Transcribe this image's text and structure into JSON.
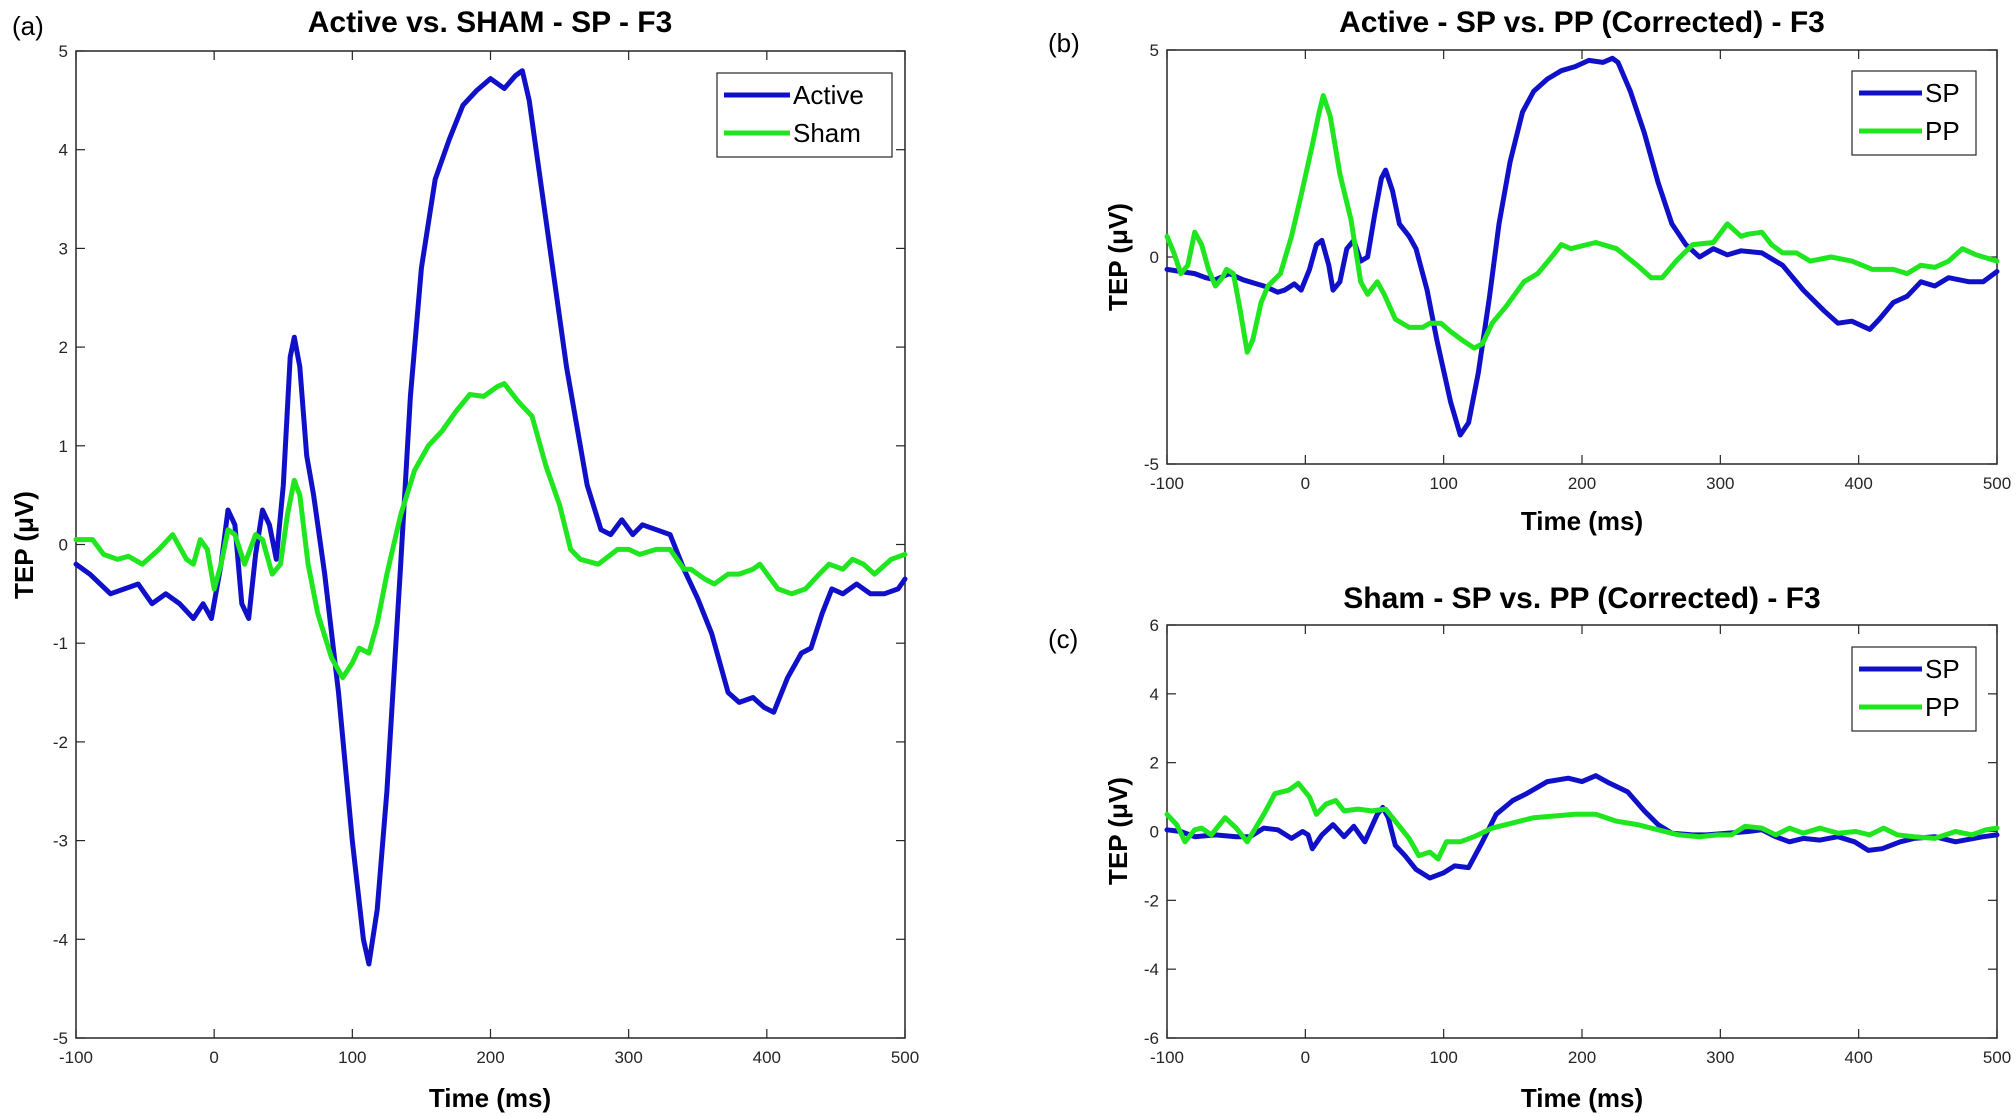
{
  "colors": {
    "series_blue": "#1010c8",
    "series_green": "#1fe61f",
    "axis": "#262626"
  },
  "chart_data": [
    {
      "panel_label": "(a)",
      "type": "line",
      "title": "Active vs. SHAM - SP - F3",
      "xlabel": "Time (ms)",
      "ylabel": "TEP (μV)",
      "xlim": [
        -100,
        500
      ],
      "ylim": [
        -5,
        5
      ],
      "xticks": [
        -100,
        0,
        100,
        200,
        300,
        400,
        500
      ],
      "yticks": [
        -5,
        -4,
        -3,
        -2,
        -1,
        0,
        1,
        2,
        3,
        4,
        5
      ],
      "grid": false,
      "legend_position": "top-right",
      "series": [
        {
          "name": "Active",
          "color": "#1010c8",
          "x": [
            -100,
            -90,
            -75,
            -65,
            -55,
            -45,
            -35,
            -25,
            -15,
            -8,
            -2,
            5,
            10,
            15,
            20,
            25,
            30,
            35,
            40,
            45,
            50,
            55,
            58,
            62,
            67,
            72,
            80,
            90,
            100,
            108,
            112,
            118,
            125,
            135,
            142,
            150,
            160,
            170,
            180,
            190,
            200,
            210,
            218,
            223,
            228,
            240,
            255,
            270,
            280,
            287,
            295,
            303,
            310,
            320,
            330,
            340,
            350,
            360,
            372,
            380,
            390,
            398,
            405,
            415,
            425,
            432,
            440,
            447,
            455,
            465,
            475,
            485,
            495,
            500
          ],
          "y": [
            -0.2,
            -0.3,
            -0.5,
            -0.45,
            -0.4,
            -0.6,
            -0.5,
            -0.6,
            -0.75,
            -0.6,
            -0.75,
            -0.2,
            0.35,
            0.2,
            -0.6,
            -0.75,
            -0.1,
            0.35,
            0.2,
            -0.15,
            0.6,
            1.9,
            2.1,
            1.8,
            0.9,
            0.5,
            -0.3,
            -1.5,
            -3.0,
            -4.0,
            -4.25,
            -3.7,
            -2.5,
            -0.2,
            1.5,
            2.8,
            3.7,
            4.1,
            4.45,
            4.6,
            4.72,
            4.62,
            4.75,
            4.8,
            4.5,
            3.3,
            1.8,
            0.6,
            0.15,
            0.1,
            0.25,
            0.1,
            0.2,
            0.15,
            0.1,
            -0.25,
            -0.55,
            -0.9,
            -1.5,
            -1.6,
            -1.55,
            -1.65,
            -1.7,
            -1.35,
            -1.1,
            -1.05,
            -0.7,
            -0.45,
            -0.5,
            -0.4,
            -0.5,
            -0.5,
            -0.45,
            -0.35
          ]
        },
        {
          "name": "Sham",
          "color": "#1fe61f",
          "x": [
            -100,
            -88,
            -80,
            -70,
            -62,
            -52,
            -40,
            -30,
            -20,
            -15,
            -10,
            -5,
            0,
            5,
            10,
            15,
            22,
            30,
            35,
            42,
            48,
            53,
            58,
            62,
            68,
            75,
            85,
            93,
            100,
            105,
            112,
            118,
            125,
            135,
            145,
            155,
            165,
            175,
            185,
            195,
            205,
            210,
            220,
            230,
            240,
            250,
            258,
            265,
            278,
            292,
            300,
            308,
            320,
            330,
            340,
            345,
            355,
            362,
            372,
            380,
            390,
            395,
            408,
            418,
            428,
            438,
            445,
            455,
            462,
            470,
            478,
            490,
            500
          ],
          "y": [
            0.05,
            0.05,
            -0.1,
            -0.15,
            -0.12,
            -0.2,
            -0.05,
            0.1,
            -0.15,
            -0.2,
            0.05,
            -0.05,
            -0.45,
            -0.2,
            0.15,
            0.1,
            -0.2,
            0.1,
            0.05,
            -0.3,
            -0.2,
            0.3,
            0.65,
            0.5,
            -0.2,
            -0.7,
            -1.15,
            -1.35,
            -1.2,
            -1.05,
            -1.1,
            -0.8,
            -0.3,
            0.3,
            0.75,
            1.0,
            1.15,
            1.35,
            1.52,
            1.5,
            1.6,
            1.63,
            1.45,
            1.3,
            0.8,
            0.4,
            -0.05,
            -0.15,
            -0.2,
            -0.05,
            -0.05,
            -0.1,
            -0.05,
            -0.05,
            -0.25,
            -0.25,
            -0.35,
            -0.4,
            -0.3,
            -0.3,
            -0.25,
            -0.2,
            -0.45,
            -0.5,
            -0.45,
            -0.3,
            -0.2,
            -0.25,
            -0.15,
            -0.2,
            -0.3,
            -0.15,
            -0.1
          ]
        }
      ]
    },
    {
      "panel_label": "(b)",
      "type": "line",
      "title": "Active - SP vs. PP (Corrected) - F3",
      "xlabel": "Time (ms)",
      "ylabel": "TEP (μV)",
      "xlim": [
        -100,
        500
      ],
      "ylim": [
        -5,
        5
      ],
      "xticks": [
        -100,
        0,
        100,
        200,
        300,
        400,
        500
      ],
      "yticks": [
        -5,
        0,
        5
      ],
      "grid": false,
      "legend_position": "top-right",
      "series": [
        {
          "name": "SP",
          "color": "#1010c8",
          "x": [
            -100,
            -90,
            -80,
            -72,
            -65,
            -55,
            -45,
            -30,
            -20,
            -15,
            -8,
            -3,
            3,
            8,
            12,
            17,
            20,
            25,
            30,
            35,
            40,
            45,
            50,
            55,
            58,
            63,
            68,
            75,
            80,
            88,
            95,
            105,
            112,
            118,
            125,
            133,
            140,
            148,
            157,
            165,
            175,
            185,
            195,
            205,
            215,
            222,
            226,
            235,
            245,
            255,
            265,
            275,
            285,
            295,
            305,
            315,
            330,
            345,
            360,
            375,
            385,
            395,
            408,
            415,
            425,
            435,
            445,
            455,
            465,
            480,
            490,
            500
          ],
          "y": [
            -0.3,
            -0.35,
            -0.4,
            -0.5,
            -0.55,
            -0.4,
            -0.55,
            -0.7,
            -0.85,
            -0.8,
            -0.65,
            -0.8,
            -0.3,
            0.3,
            0.4,
            -0.2,
            -0.8,
            -0.6,
            0.2,
            0.4,
            -0.1,
            0.0,
            1.0,
            1.9,
            2.1,
            1.6,
            0.8,
            0.5,
            0.2,
            -0.8,
            -2.0,
            -3.5,
            -4.3,
            -4.0,
            -2.8,
            -1.0,
            0.8,
            2.3,
            3.5,
            4.0,
            4.3,
            4.5,
            4.6,
            4.75,
            4.7,
            4.8,
            4.7,
            4.0,
            3.0,
            1.8,
            0.8,
            0.3,
            0.0,
            0.2,
            0.05,
            0.15,
            0.1,
            -0.2,
            -0.8,
            -1.3,
            -1.6,
            -1.55,
            -1.75,
            -1.5,
            -1.1,
            -0.95,
            -0.6,
            -0.7,
            -0.5,
            -0.6,
            -0.6,
            -0.35
          ]
        },
        {
          "name": "PP",
          "color": "#1fe61f",
          "x": [
            -100,
            -95,
            -90,
            -85,
            -80,
            -75,
            -70,
            -65,
            -60,
            -57,
            -52,
            -47,
            -42,
            -38,
            -32,
            -27,
            -18,
            -10,
            -3,
            5,
            10,
            13,
            18,
            25,
            33,
            40,
            45,
            52,
            57,
            65,
            75,
            85,
            90,
            98,
            105,
            113,
            122,
            128,
            135,
            145,
            158,
            168,
            178,
            185,
            192,
            198,
            210,
            225,
            240,
            250,
            258,
            268,
            280,
            295,
            305,
            315,
            320,
            330,
            337,
            345,
            355,
            365,
            380,
            395,
            410,
            425,
            435,
            445,
            455,
            465,
            475,
            485,
            500
          ],
          "y": [
            0.5,
            0.1,
            -0.4,
            -0.2,
            0.6,
            0.3,
            -0.3,
            -0.7,
            -0.5,
            -0.3,
            -0.4,
            -1.3,
            -2.3,
            -2.0,
            -1.1,
            -0.7,
            -0.4,
            0.5,
            1.5,
            2.7,
            3.5,
            3.9,
            3.4,
            2.0,
            0.9,
            -0.6,
            -0.9,
            -0.6,
            -0.9,
            -1.5,
            -1.7,
            -1.7,
            -1.6,
            -1.6,
            -1.8,
            -2.0,
            -2.2,
            -2.1,
            -1.6,
            -1.2,
            -0.6,
            -0.4,
            0.0,
            0.3,
            0.2,
            0.25,
            0.35,
            0.2,
            -0.2,
            -0.5,
            -0.5,
            -0.1,
            0.3,
            0.35,
            0.8,
            0.5,
            0.55,
            0.6,
            0.3,
            0.1,
            0.1,
            -0.1,
            0.0,
            -0.1,
            -0.3,
            -0.3,
            -0.4,
            -0.2,
            -0.25,
            -0.1,
            0.2,
            0.05,
            -0.1
          ]
        }
      ]
    },
    {
      "panel_label": "(c)",
      "type": "line",
      "title": "Sham - SP vs. PP (Corrected) - F3",
      "xlabel": "Time (ms)",
      "ylabel": "TEP (μV)",
      "xlim": [
        -100,
        500
      ],
      "ylim": [
        -6,
        6
      ],
      "xticks": [
        -100,
        0,
        100,
        200,
        300,
        400,
        500
      ],
      "yticks": [
        -6,
        -4,
        -2,
        0,
        2,
        4,
        6
      ],
      "grid": false,
      "legend_position": "top-right",
      "series": [
        {
          "name": "SP",
          "color": "#1010c8",
          "x": [
            -100,
            -90,
            -80,
            -65,
            -50,
            -40,
            -30,
            -20,
            -10,
            -2,
            2,
            5,
            12,
            20,
            28,
            35,
            43,
            52,
            56,
            60,
            65,
            72,
            80,
            90,
            100,
            108,
            118,
            128,
            138,
            150,
            160,
            175,
            190,
            200,
            210,
            220,
            233,
            245,
            255,
            265,
            280,
            290,
            305,
            320,
            330,
            340,
            350,
            360,
            372,
            385,
            397,
            407,
            417,
            430,
            440,
            455,
            470,
            490,
            500
          ],
          "y": [
            0.05,
            0.0,
            -0.15,
            -0.1,
            -0.15,
            -0.15,
            0.1,
            0.05,
            -0.2,
            0.0,
            -0.1,
            -0.5,
            -0.1,
            0.2,
            -0.15,
            0.15,
            -0.3,
            0.5,
            0.7,
            0.4,
            -0.4,
            -0.7,
            -1.1,
            -1.35,
            -1.2,
            -1.0,
            -1.05,
            -0.3,
            0.5,
            0.9,
            1.1,
            1.45,
            1.55,
            1.45,
            1.62,
            1.4,
            1.15,
            0.6,
            0.2,
            -0.05,
            -0.1,
            -0.1,
            -0.05,
            0.0,
            0.05,
            -0.15,
            -0.3,
            -0.2,
            -0.25,
            -0.15,
            -0.3,
            -0.55,
            -0.5,
            -0.3,
            -0.2,
            -0.15,
            -0.3,
            -0.15,
            -0.1
          ]
        },
        {
          "name": "PP",
          "color": "#1fe61f",
          "x": [
            -100,
            -93,
            -87,
            -80,
            -75,
            -68,
            -58,
            -50,
            -42,
            -30,
            -22,
            -12,
            -5,
            3,
            8,
            15,
            22,
            28,
            38,
            48,
            58,
            65,
            75,
            82,
            90,
            96,
            102,
            112,
            122,
            135,
            150,
            165,
            180,
            195,
            210,
            225,
            240,
            255,
            270,
            285,
            298,
            308,
            318,
            330,
            340,
            350,
            360,
            372,
            385,
            398,
            408,
            418,
            428,
            440,
            455,
            470,
            482,
            492,
            500
          ],
          "y": [
            0.5,
            0.2,
            -0.3,
            0.05,
            0.1,
            -0.1,
            0.4,
            0.1,
            -0.3,
            0.5,
            1.1,
            1.2,
            1.4,
            1.0,
            0.5,
            0.8,
            0.9,
            0.6,
            0.65,
            0.6,
            0.65,
            0.3,
            -0.2,
            -0.7,
            -0.6,
            -0.8,
            -0.3,
            -0.3,
            -0.15,
            0.1,
            0.25,
            0.4,
            0.45,
            0.5,
            0.5,
            0.3,
            0.2,
            0.05,
            -0.1,
            -0.15,
            -0.1,
            -0.1,
            0.15,
            0.1,
            -0.1,
            0.1,
            -0.05,
            0.1,
            -0.05,
            0.0,
            -0.1,
            0.1,
            -0.1,
            -0.15,
            -0.2,
            0.0,
            -0.1,
            0.05,
            0.1
          ]
        }
      ]
    }
  ]
}
